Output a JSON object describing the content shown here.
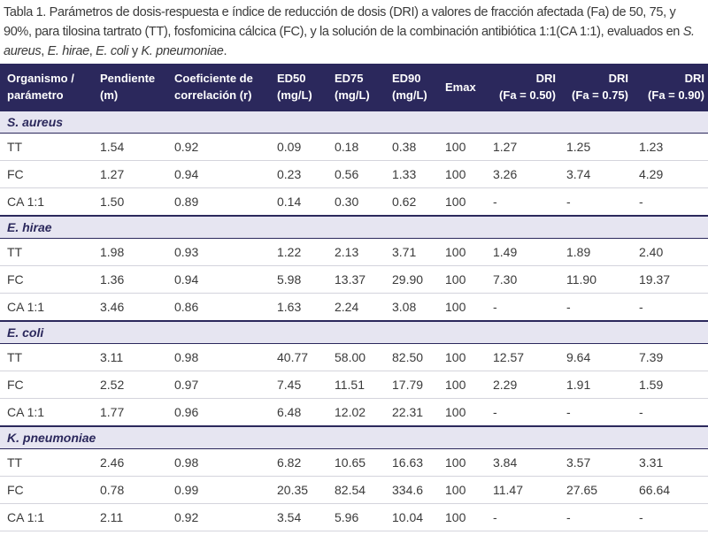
{
  "caption": {
    "parts": [
      "Tabla 1. Parámetros de dosis-respuesta e índice de reducción de dosis (DRI) a valores de fracción afectada (Fa) de 50, 75, y 90%, para tilosina tartrato (TT), fosfomicina cálcica (FC), y la solución de la combinación antibiótica 1:1(CA 1:1), evaluados en ",
      "S. aureus",
      ", ",
      "E. hirae",
      ", ",
      "E. coli",
      " y ",
      "K. pneumoniae",
      "."
    ]
  },
  "table": {
    "header": [
      [
        "Organismo /",
        "parámetro"
      ],
      [
        "Pendiente",
        "(m)"
      ],
      [
        "Coeficiente de",
        "correlación (r)"
      ],
      [
        "ED50",
        "(mg/L)"
      ],
      [
        "ED75",
        "(mg/L)"
      ],
      [
        "ED90",
        "(mg/L)"
      ],
      [
        "Emax"
      ],
      [
        "DRI",
        "(Fa = 0.50)"
      ],
      [
        "DRI",
        "(Fa = 0.75)"
      ],
      [
        "DRI",
        "(Fa = 0.90)"
      ]
    ],
    "groups": [
      {
        "name": "S. aureus",
        "rows": [
          [
            "TT",
            "1.54",
            "0.92",
            "0.09",
            "0.18",
            "0.38",
            "100",
            "1.27",
            "1.25",
            "1.23"
          ],
          [
            "FC",
            "1.27",
            "0.94",
            "0.23",
            "0.56",
            "1.33",
            "100",
            "3.26",
            "3.74",
            "4.29"
          ],
          [
            "CA 1:1",
            "1.50",
            "0.89",
            "0.14",
            "0.30",
            "0.62",
            "100",
            "-",
            "-",
            "-"
          ]
        ]
      },
      {
        "name": "E. hirae",
        "rows": [
          [
            "TT",
            "1.98",
            "0.93",
            "1.22",
            "2.13",
            "3.71",
            "100",
            "1.49",
            "1.89",
            "2.40"
          ],
          [
            "FC",
            "1.36",
            "0.94",
            "5.98",
            "13.37",
            "29.90",
            "100",
            "7.30",
            "11.90",
            "19.37"
          ],
          [
            "CA 1:1",
            "3.46",
            "0.86",
            "1.63",
            "2.24",
            "3.08",
            "100",
            "-",
            "-",
            "-"
          ]
        ]
      },
      {
        "name": "E. coli",
        "rows": [
          [
            "TT",
            "3.11",
            "0.98",
            "40.77",
            "58.00",
            "82.50",
            "100",
            "12.57",
            "9.64",
            "7.39"
          ],
          [
            "FC",
            "2.52",
            "0.97",
            "7.45",
            "11.51",
            "17.79",
            "100",
            "2.29",
            "1.91",
            "1.59"
          ],
          [
            "CA 1:1",
            "1.77",
            "0.96",
            "6.48",
            "12.02",
            "22.31",
            "100",
            "-",
            "-",
            "-"
          ]
        ]
      },
      {
        "name": "K. pneumoniae",
        "rows": [
          [
            "TT",
            "2.46",
            "0.98",
            "6.82",
            "10.65",
            "16.63",
            "100",
            "3.84",
            "3.57",
            "3.31"
          ],
          [
            "FC",
            "0.78",
            "0.99",
            "20.35",
            "82.54",
            "334.6",
            "100",
            "11.47",
            "27.65",
            "66.64"
          ],
          [
            "CA 1:1",
            "2.11",
            "0.92",
            "3.54",
            "5.96",
            "10.04",
            "100",
            "-",
            "-",
            "-"
          ]
        ]
      }
    ]
  }
}
